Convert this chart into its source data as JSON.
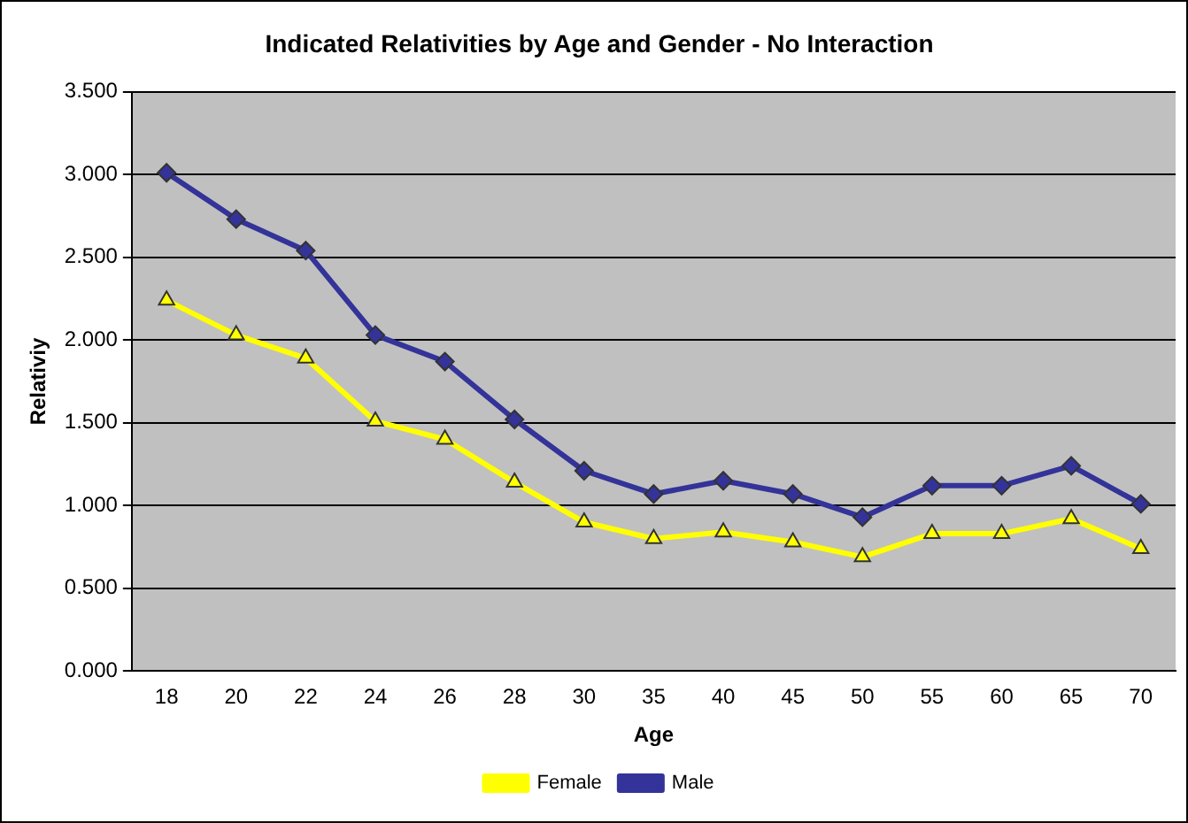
{
  "chart_data": {
    "type": "line",
    "title": "Indicated Relativities by Age and Gender - No Interaction",
    "xlabel": "Age",
    "ylabel": "Relativiy",
    "categories": [
      "18",
      "20",
      "22",
      "24",
      "26",
      "28",
      "30",
      "35",
      "40",
      "45",
      "50",
      "55",
      "60",
      "65",
      "70"
    ],
    "series": [
      {
        "name": "Female",
        "color": "#ffff00",
        "marker": "triangle",
        "values": [
          2.24,
          2.03,
          1.89,
          1.51,
          1.4,
          1.14,
          0.9,
          0.8,
          0.84,
          0.78,
          0.69,
          0.83,
          0.83,
          0.92,
          0.74
        ]
      },
      {
        "name": "Male",
        "color": "#333399",
        "marker": "diamond",
        "values": [
          3.01,
          2.73,
          2.54,
          2.03,
          1.87,
          1.52,
          1.21,
          1.07,
          1.15,
          1.07,
          0.93,
          1.12,
          1.12,
          1.24,
          1.01
        ]
      }
    ],
    "ylim": [
      0,
      3.5
    ],
    "yticks": [
      {
        "value": 0,
        "label": "0.000"
      },
      {
        "value": 0.5,
        "label": "0.500"
      },
      {
        "value": 1,
        "label": "1.000"
      },
      {
        "value": 1.5,
        "label": "1.500"
      },
      {
        "value": 2,
        "label": "2.000"
      },
      {
        "value": 2.5,
        "label": "2.500"
      },
      {
        "value": 3,
        "label": "3.000"
      },
      {
        "value": 3.5,
        "label": "3.500"
      }
    ],
    "grid": "y",
    "legend": "bottom"
  }
}
